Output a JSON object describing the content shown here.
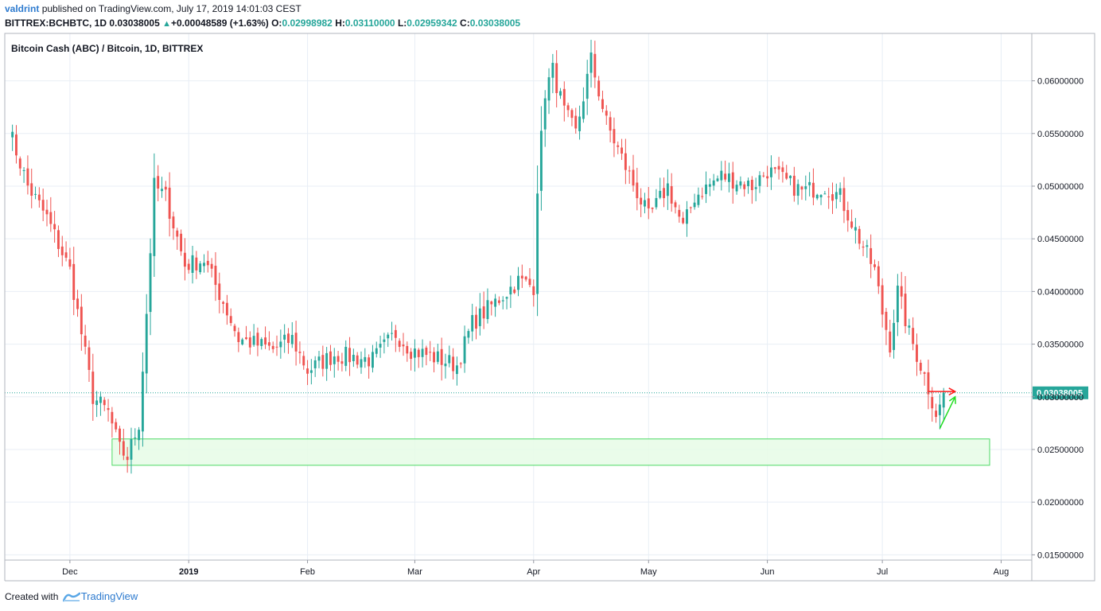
{
  "header": {
    "author": "valdrint",
    "published": "published on TradingView.com, July 17, 2019 14:01:03 CEST",
    "symbol": "BITTREX:BCHBTC, 1D",
    "last": "0.03038005",
    "change": "+0.00048589 (+1.63%)",
    "open_label": "O:",
    "open": "0.02998982",
    "high_label": "H:",
    "high": "0.03110000",
    "low_label": "L:",
    "low": "0.02959342",
    "close_label": "C:",
    "close": "0.03038005"
  },
  "footer": {
    "created_with": "Created with",
    "brand": "TradingView"
  },
  "colors": {
    "up": "#26a69a",
    "down": "#ef5350",
    "grid": "#e8eef5",
    "price_line": "#26a69a",
    "zone_fill": "#e6fbe6",
    "zone_border": "#4cd964",
    "arrow_red": "#ff1a1a",
    "arrow_green": "#22dd22",
    "axis_text": "#131722"
  },
  "chart_data": {
    "type": "candlestick",
    "title": "Bitcoin Cash (ABC) / Bitcoin, 1D, BITTREX",
    "x_ticks": [
      "Dec",
      "2019",
      "Feb",
      "Mar",
      "Apr",
      "May",
      "Jun",
      "Jul",
      "Aug"
    ],
    "y_ticks": [
      "0.06000000",
      "0.05500000",
      "0.05000000",
      "0.04500000",
      "0.04000000",
      "0.03500000",
      "0.03000000",
      "0.02500000",
      "0.02000000",
      "0.01500000"
    ],
    "ylim": [
      0.0145,
      0.0645
    ],
    "last_price": "0.03038005",
    "grid": true,
    "waypoints": [
      [
        "2018-11-15",
        0.0555
      ],
      [
        "2018-11-20",
        0.05
      ],
      [
        "2018-11-25",
        0.047
      ],
      [
        "2018-12-01",
        0.042
      ],
      [
        "2018-12-04",
        0.036
      ],
      [
        "2018-12-07",
        0.03
      ],
      [
        "2018-12-11",
        0.0285
      ],
      [
        "2018-12-14",
        0.025
      ],
      [
        "2018-12-16",
        0.0243
      ],
      [
        "2018-12-19",
        0.0275
      ],
      [
        "2018-12-21",
        0.038
      ],
      [
        "2018-12-23",
        0.05
      ],
      [
        "2018-12-26",
        0.049
      ],
      [
        "2018-12-31",
        0.0425
      ],
      [
        "2019-01-05",
        0.043
      ],
      [
        "2019-01-10",
        0.039
      ],
      [
        "2019-01-14",
        0.0355
      ],
      [
        "2019-01-23",
        0.0345
      ],
      [
        "2019-01-28",
        0.0355
      ],
      [
        "2019-02-01",
        0.0325
      ],
      [
        "2019-02-08",
        0.034
      ],
      [
        "2019-02-18",
        0.0335
      ],
      [
        "2019-02-24",
        0.036
      ],
      [
        "2019-02-28",
        0.0345
      ],
      [
        "2019-03-12",
        0.033
      ],
      [
        "2019-03-16",
        0.037
      ],
      [
        "2019-03-22",
        0.039
      ],
      [
        "2019-03-28",
        0.041
      ],
      [
        "2019-04-01",
        0.0405
      ],
      [
        "2019-04-02",
        0.05
      ],
      [
        "2019-04-04",
        0.059
      ],
      [
        "2019-04-06",
        0.061
      ],
      [
        "2019-04-09",
        0.057
      ],
      [
        "2019-04-12",
        0.055
      ],
      [
        "2019-04-16",
        0.062
      ],
      [
        "2019-04-20",
        0.056
      ],
      [
        "2019-04-26",
        0.051
      ],
      [
        "2019-05-01",
        0.047
      ],
      [
        "2019-05-06",
        0.05
      ],
      [
        "2019-05-10",
        0.046
      ],
      [
        "2019-05-13",
        0.049
      ],
      [
        "2019-05-20",
        0.051
      ],
      [
        "2019-05-28",
        0.05
      ],
      [
        "2019-06-01",
        0.0515
      ],
      [
        "2019-06-10",
        0.0495
      ],
      [
        "2019-06-16",
        0.05
      ],
      [
        "2019-06-20",
        0.049
      ],
      [
        "2019-06-25",
        0.045
      ],
      [
        "2019-06-29",
        0.042
      ],
      [
        "2019-07-01",
        0.038
      ],
      [
        "2019-07-03",
        0.035
      ],
      [
        "2019-07-05",
        0.04
      ],
      [
        "2019-07-08",
        0.036
      ],
      [
        "2019-07-12",
        0.032
      ],
      [
        "2019-07-15",
        0.0285
      ],
      [
        "2019-07-16",
        0.029
      ],
      [
        "2019-07-17",
        0.0304
      ]
    ],
    "support_zone": {
      "from": "2018-12-12",
      "to": "2019-07-29",
      "low": 0.0235,
      "high": 0.026
    },
    "annotations": [
      {
        "type": "arrow",
        "color": "red",
        "from": [
          "2019-07-13",
          0.0305
        ],
        "to": [
          "2019-07-20",
          0.0305
        ]
      },
      {
        "type": "arrow",
        "color": "green",
        "from": [
          "2019-07-16",
          0.027
        ],
        "to": [
          "2019-07-20",
          0.03
        ]
      }
    ]
  }
}
